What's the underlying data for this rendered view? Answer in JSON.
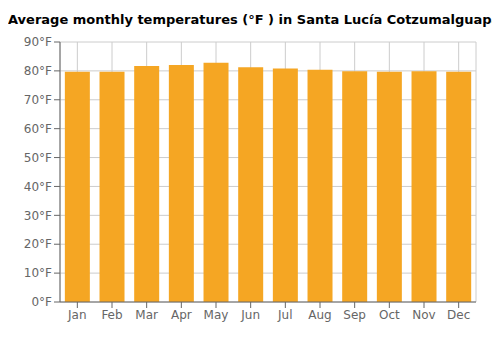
{
  "chart_data": {
    "type": "bar",
    "title": "Average monthly temperatures (°F ) in Santa Lucía Cotzumalguapa",
    "categories": [
      "Jan",
      "Feb",
      "Mar",
      "Apr",
      "May",
      "Jun",
      "Jul",
      "Aug",
      "Sep",
      "Oct",
      "Nov",
      "Dec"
    ],
    "values": [
      79.7,
      79.7,
      81.7,
      82.0,
      82.8,
      81.3,
      80.8,
      80.4,
      79.9,
      79.7,
      79.9,
      79.7
    ],
    "color": "#F5A623",
    "ylim": [
      0,
      90
    ],
    "yticks": [
      {
        "value": 0,
        "label": "0°F"
      },
      {
        "value": 10,
        "label": "10°F"
      },
      {
        "value": 20,
        "label": "20°F"
      },
      {
        "value": 30,
        "label": "30°F"
      },
      {
        "value": 40,
        "label": "40°F"
      },
      {
        "value": 50,
        "label": "50°F"
      },
      {
        "value": 60,
        "label": "60°F"
      },
      {
        "value": 70,
        "label": "70°F"
      },
      {
        "value": 80,
        "label": "80°F"
      },
      {
        "value": 90,
        "label": "90°F"
      }
    ],
    "grid": true
  }
}
